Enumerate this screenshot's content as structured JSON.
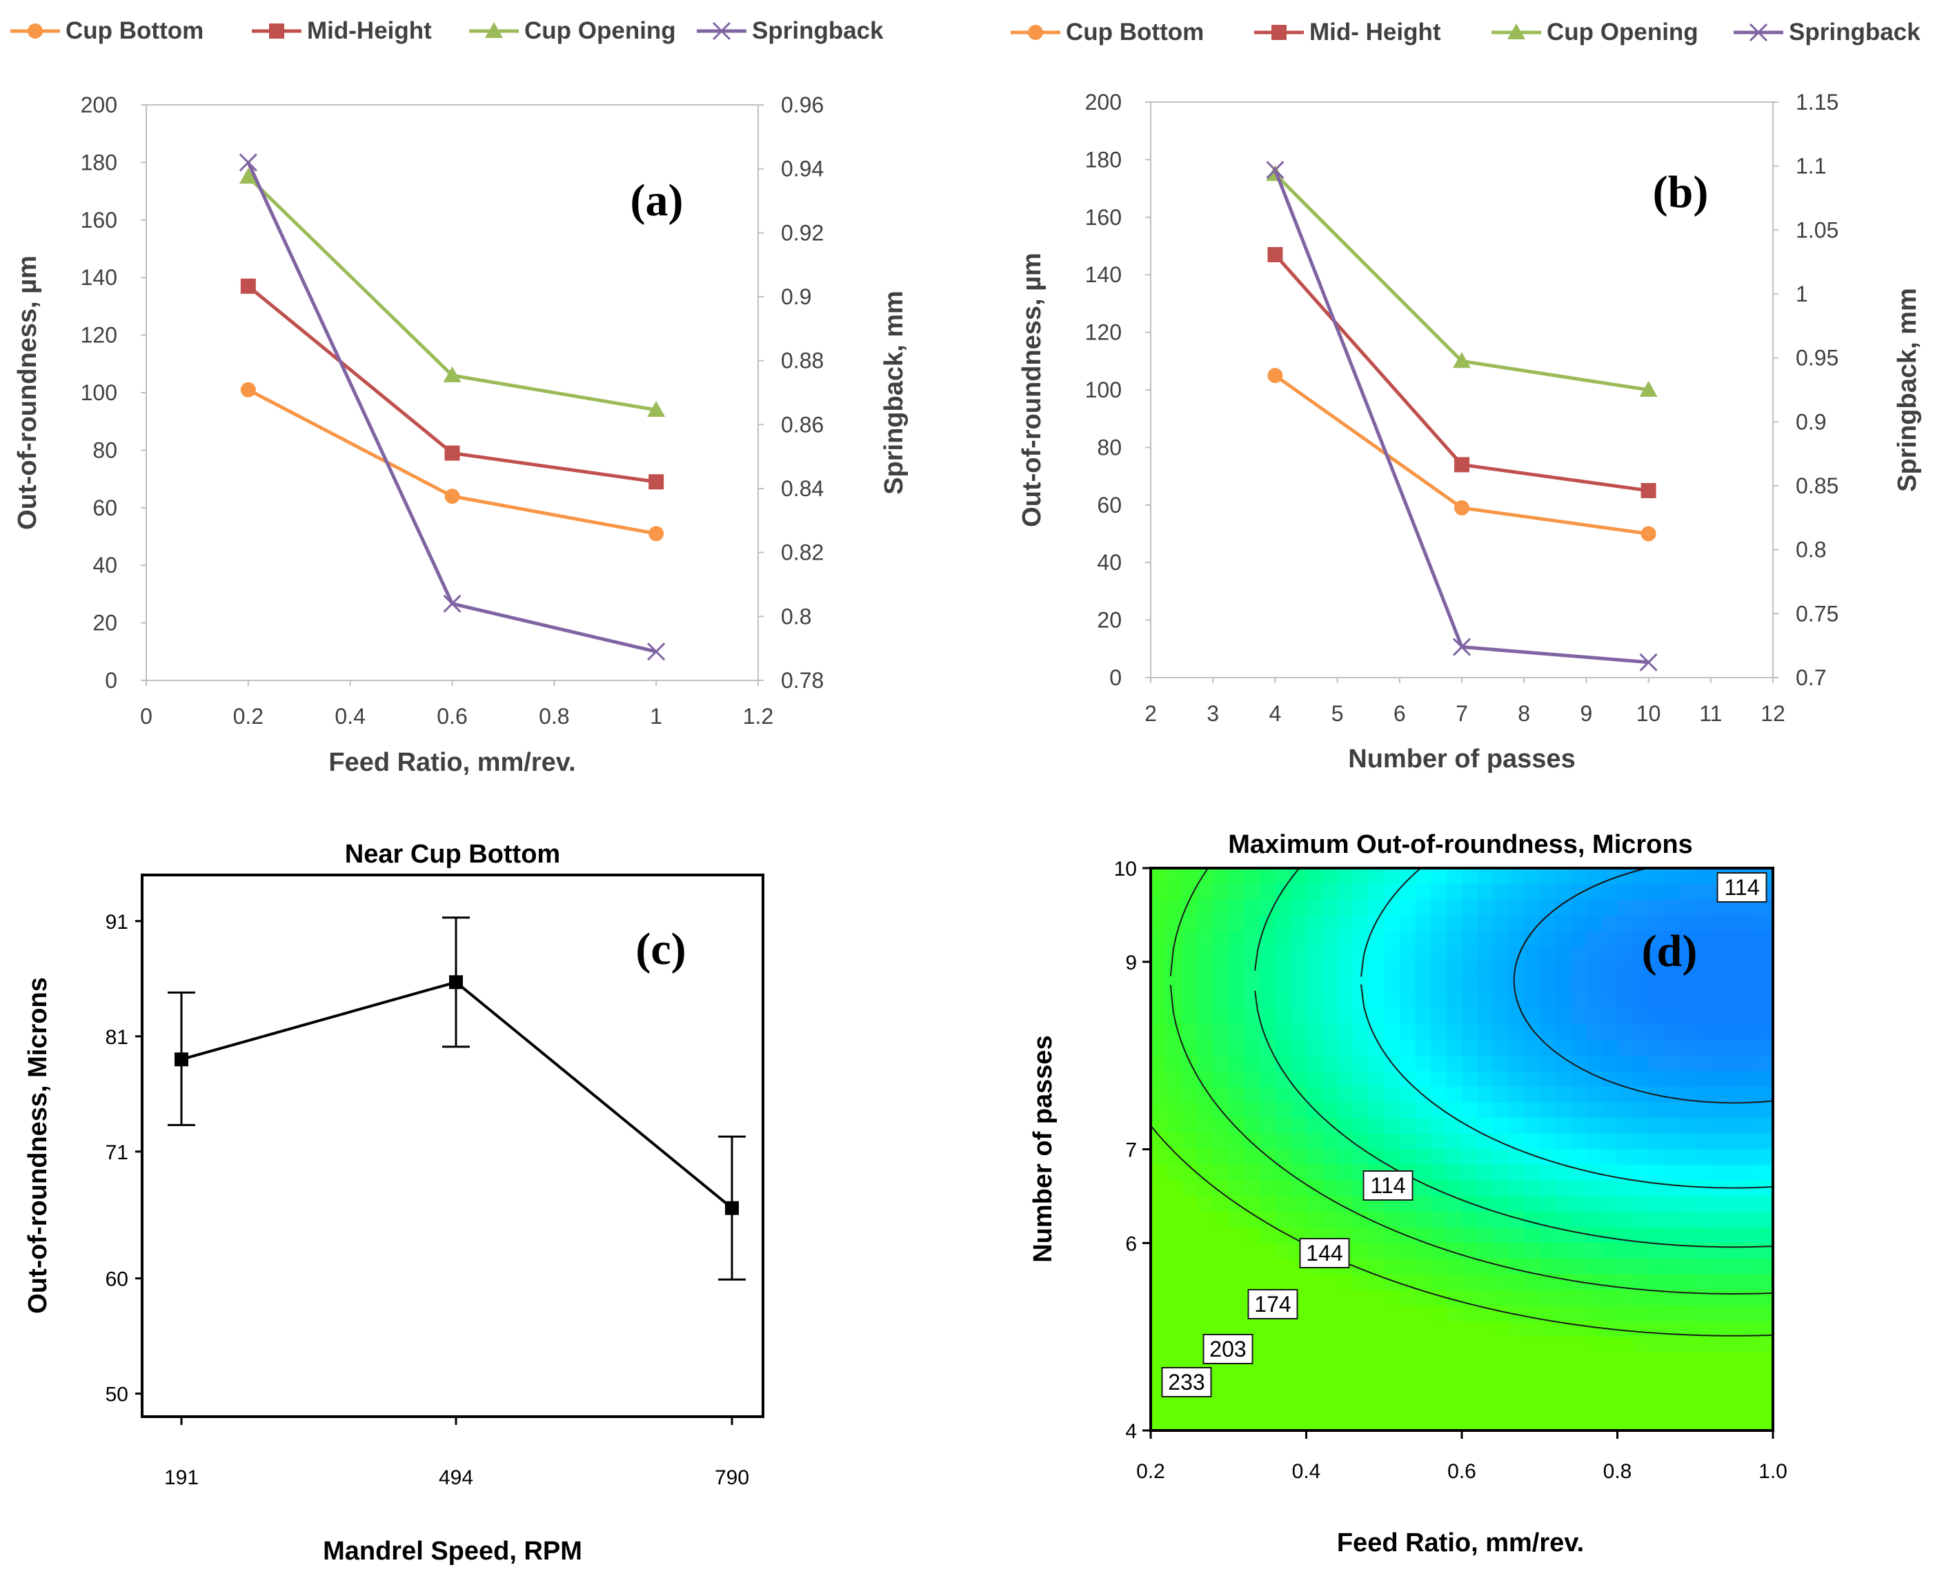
{
  "chart_data": [
    {
      "id": "a",
      "type": "line",
      "panel_label": "(a)",
      "legend": [
        "Cup Bottom",
        "Mid-Height",
        "Cup Opening",
        "Springback"
      ],
      "xlabel": "Feed Ratio, mm/rev.",
      "ylabel": "Out-of-roundness, µm",
      "y2label": "Springback, mm",
      "xlim": [
        0,
        1.2
      ],
      "ylim": [
        0,
        200
      ],
      "y2lim": [
        0.78,
        0.96
      ],
      "xticks": [
        "0",
        "0.2",
        "0.4",
        "0.6",
        "0.8",
        "1",
        "1.2"
      ],
      "yticks": [
        "0",
        "20",
        "40",
        "60",
        "80",
        "100",
        "120",
        "140",
        "160",
        "180",
        "200"
      ],
      "y2ticks": [
        "0.78",
        "0.8",
        "0.82",
        "0.84",
        "0.86",
        "0.88",
        "0.9",
        "0.92",
        "0.94",
        "0.96"
      ],
      "x": [
        0.2,
        0.6,
        1.0
      ],
      "series": [
        {
          "name": "Cup Bottom",
          "axis": "left",
          "marker": "circle",
          "color": "#f79646",
          "values": [
            101,
            64,
            51
          ]
        },
        {
          "name": "Mid-Height",
          "axis": "left",
          "marker": "square",
          "color": "#c0504d",
          "values": [
            137,
            79,
            69
          ]
        },
        {
          "name": "Cup Opening",
          "axis": "left",
          "marker": "triangle",
          "color": "#9bbb59",
          "values": [
            175,
            106,
            94
          ]
        },
        {
          "name": "Springback",
          "axis": "right",
          "marker": "x",
          "color": "#8064a2",
          "values": [
            0.942,
            0.804,
            0.789
          ]
        }
      ]
    },
    {
      "id": "b",
      "type": "line",
      "panel_label": "(b)",
      "legend": [
        "Cup Bottom",
        "Mid- Height",
        "Cup Opening",
        "Springback"
      ],
      "xlabel": "Number of passes",
      "ylabel": "Out-of-roundness, µm",
      "y2label": "Springback, mm",
      "xlim": [
        2,
        12
      ],
      "ylim": [
        0,
        200
      ],
      "y2lim": [
        0.7,
        1.15
      ],
      "xticks": [
        "2",
        "3",
        "4",
        "5",
        "6",
        "7",
        "8",
        "9",
        "10",
        "11",
        "12"
      ],
      "yticks": [
        "0",
        "20",
        "40",
        "60",
        "80",
        "100",
        "120",
        "140",
        "160",
        "180",
        "200"
      ],
      "y2ticks": [
        "0.7",
        "0.75",
        "0.8",
        "0.85",
        "0.9",
        "0.95",
        "1",
        "1.05",
        "1.1",
        "1.15"
      ],
      "x": [
        4,
        7,
        10
      ],
      "series": [
        {
          "name": "Cup Bottom",
          "axis": "left",
          "marker": "circle",
          "color": "#f79646",
          "values": [
            105,
            59,
            50
          ]
        },
        {
          "name": "Mid- Height",
          "axis": "left",
          "marker": "square",
          "color": "#c0504d",
          "values": [
            147,
            74,
            65
          ]
        },
        {
          "name": "Cup Opening",
          "axis": "left",
          "marker": "triangle",
          "color": "#9bbb59",
          "values": [
            175,
            110,
            100
          ]
        },
        {
          "name": "Springback",
          "axis": "right",
          "marker": "x",
          "color": "#8064a2",
          "values": [
            1.097,
            0.724,
            0.712
          ]
        }
      ]
    },
    {
      "id": "c",
      "type": "line",
      "panel_label": "(c)",
      "title": "Near Cup Bottom",
      "xlabel": "Mandrel Speed, RPM",
      "ylabel": "Out-of-roundness, Microns",
      "categories": [
        "191",
        "494",
        "790"
      ],
      "ylim": [
        48,
        95
      ],
      "yticks": [
        "50",
        "60",
        "71",
        "81",
        "91"
      ],
      "series": [
        {
          "name": "Near Cup Bottom",
          "color": "#000000",
          "values": [
            79,
            85.7,
            66.1
          ],
          "lower": [
            73.3,
            80.1,
            59.9
          ],
          "upper": [
            84.8,
            91.3,
            72.3
          ]
        }
      ]
    },
    {
      "id": "d",
      "type": "heatmap",
      "subtype": "contour",
      "panel_label": "(d)",
      "title": "Maximum Out-of-roundness, Microns",
      "xlabel": "Feed Ratio, mm/rev.",
      "ylabel": "Number of passes",
      "xlim": [
        0.2,
        1.0
      ],
      "ylim": [
        4,
        10
      ],
      "xticks": [
        "0.2",
        "0.4",
        "0.6",
        "0.8",
        "1.0"
      ],
      "yticks": [
        "4",
        "6",
        "7",
        "9",
        "10"
      ],
      "ytick_values": [
        4,
        6,
        7,
        9,
        10
      ],
      "contour_levels": [
        "114",
        "144",
        "174",
        "203",
        "233",
        "114"
      ],
      "colormap_low_to_high": [
        "#0a80ff",
        "#00ffff",
        "#33ff33",
        "#66ff00"
      ]
    }
  ]
}
